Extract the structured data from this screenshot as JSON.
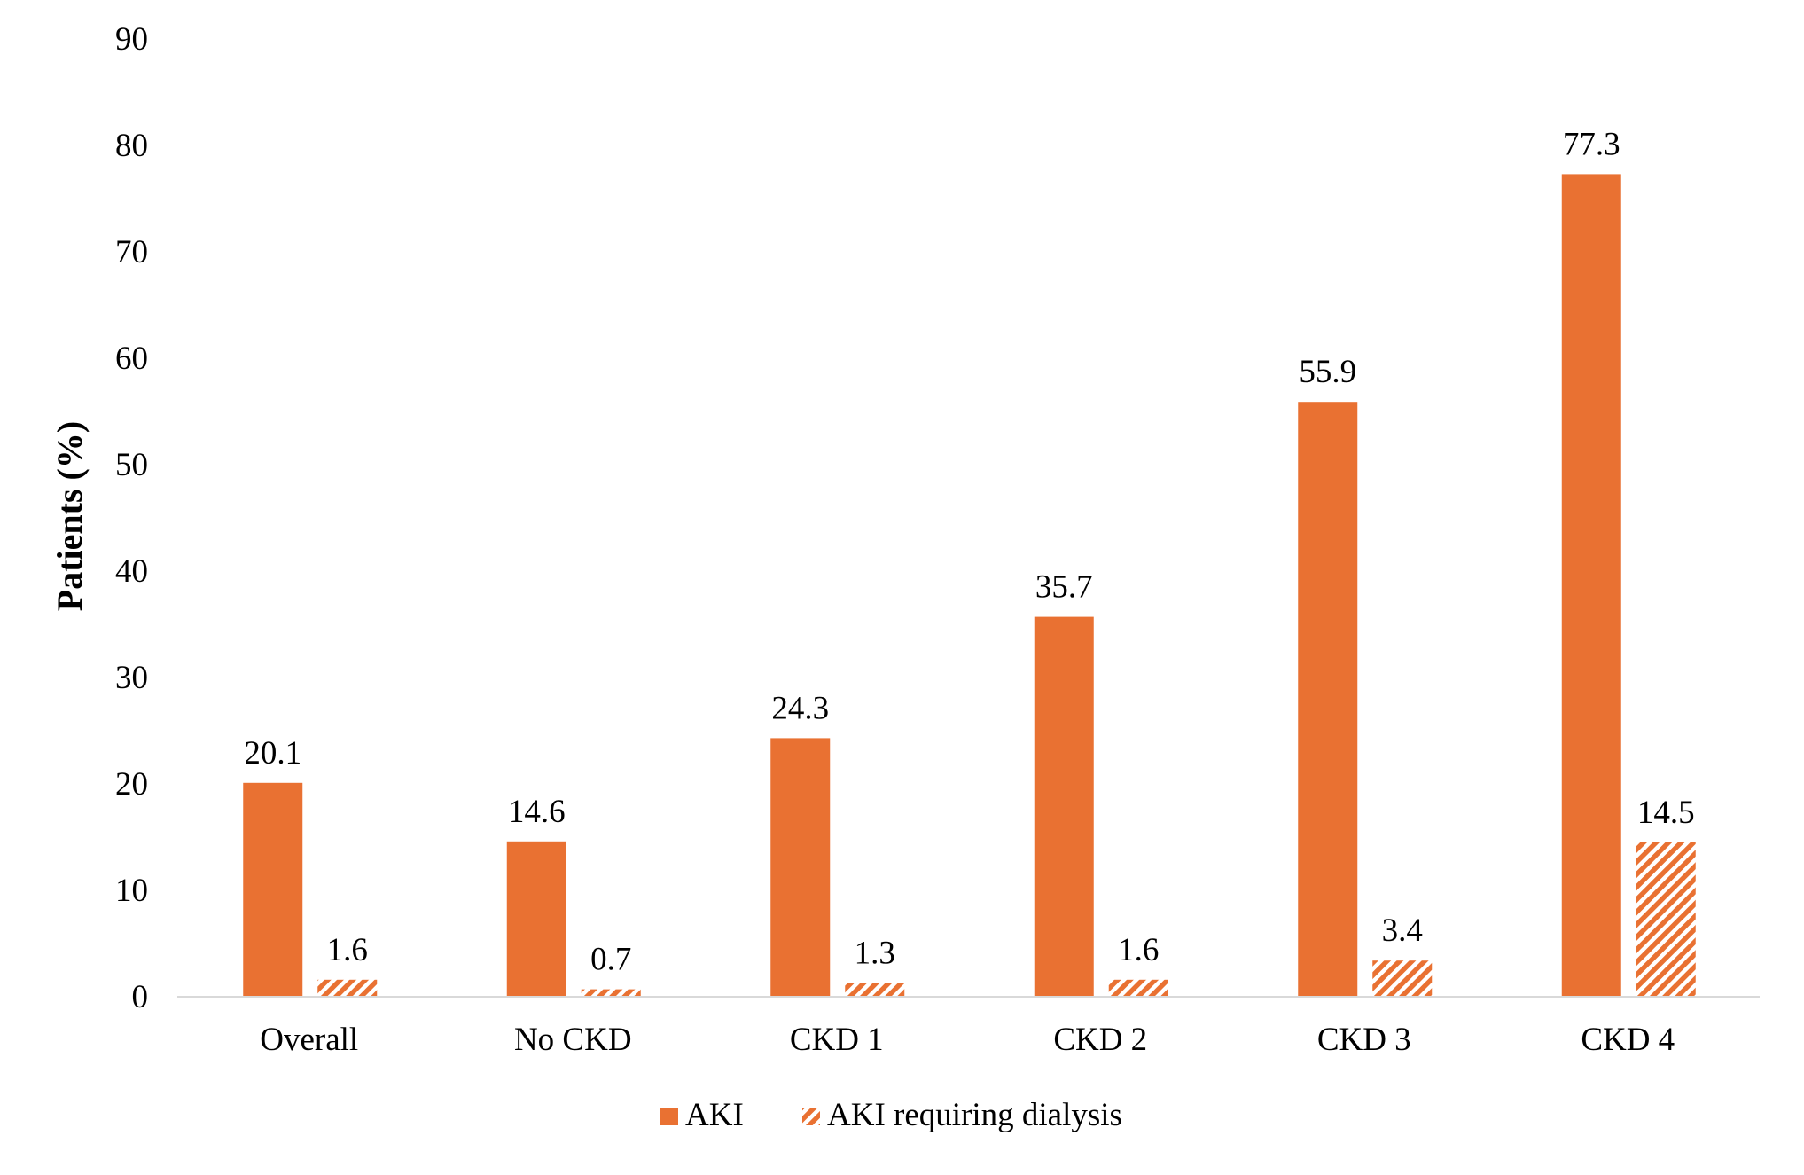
{
  "chart_data": {
    "type": "bar",
    "title": "",
    "xlabel": "",
    "ylabel": "Patients (%)",
    "ylim": [
      0,
      90
    ],
    "yticks": [
      0,
      10,
      20,
      30,
      40,
      50,
      60,
      70,
      80,
      90
    ],
    "ytick_labels": [
      "0",
      "10",
      "20",
      "30",
      "40",
      "50",
      "60",
      "70",
      "80",
      "90"
    ],
    "grid": false,
    "legend_position": "bottom",
    "categories": [
      "Overall",
      "No CKD",
      "CKD 1",
      "CKD 2",
      "CKD 3",
      "CKD 4"
    ],
    "series": [
      {
        "name": "AKI",
        "values": [
          20.1,
          14.6,
          24.3,
          35.7,
          55.9,
          77.3
        ],
        "labels": [
          "20.1",
          "14.6",
          "24.3",
          "35.7",
          "55.9",
          "77.3"
        ],
        "color": "#E97132",
        "fill": "solid"
      },
      {
        "name": "AKI requiring dialysis",
        "values": [
          1.6,
          0.7,
          1.3,
          1.6,
          3.4,
          14.5
        ],
        "labels": [
          "1.6",
          "0.7",
          "1.3",
          "1.6",
          "3.4",
          "14.5"
        ],
        "color": "#E97132",
        "fill": "diagonal-hatch"
      }
    ]
  }
}
